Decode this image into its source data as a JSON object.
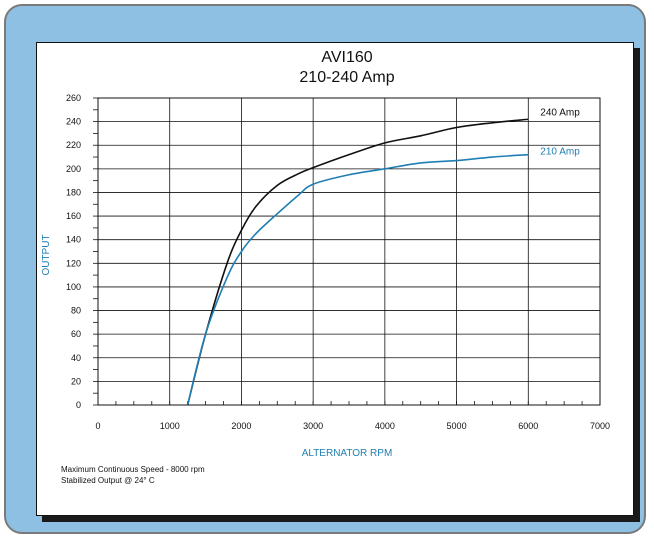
{
  "chart_data": {
    "type": "line",
    "title": "AVI160",
    "subtitle": "210-240 Amp",
    "xlabel": "ALTERNATOR RPM",
    "ylabel": "OUTPUT",
    "xlim": [
      0,
      7000
    ],
    "ylim": [
      0,
      260
    ],
    "x_ticks": [
      0,
      1000,
      2000,
      3000,
      4000,
      5000,
      6000,
      7000
    ],
    "y_ticks": [
      0,
      20,
      40,
      60,
      80,
      100,
      120,
      140,
      160,
      180,
      200,
      220,
      240,
      260
    ],
    "grid": true,
    "legend_placement": "inline-right",
    "series": [
      {
        "name": "240 Amp",
        "color": "#111111",
        "x": [
          1250,
          1500,
          1800,
          2000,
          2200,
          2500,
          2800,
          3000,
          3500,
          4000,
          4500,
          5000,
          5500,
          6000
        ],
        "y": [
          0,
          60,
          120,
          148,
          168,
          186,
          196,
          201,
          212,
          222,
          228,
          235,
          239,
          242
        ]
      },
      {
        "name": "210 Amp",
        "color": "#1f7fb4",
        "x": [
          1250,
          1500,
          1800,
          2000,
          2200,
          2500,
          2800,
          3000,
          3500,
          4000,
          4500,
          5000,
          5500,
          6000
        ],
        "y": [
          0,
          60,
          108,
          130,
          145,
          162,
          178,
          187,
          195,
          200,
          205,
          207,
          210,
          212
        ]
      }
    ],
    "notes": [
      "Maximum Continuous Speed - 8000 rpm",
      "Stabilized Output @ 24° C"
    ]
  }
}
